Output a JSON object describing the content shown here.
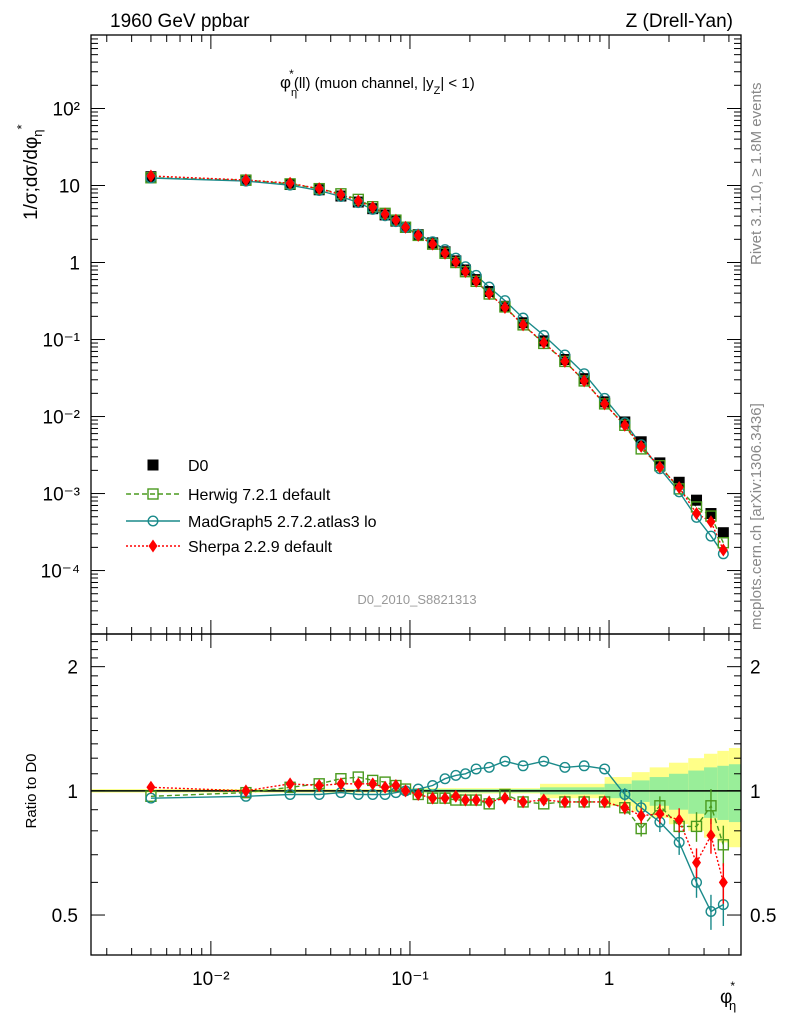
{
  "header": {
    "left": "1960 GeV ppbar",
    "right": "Z (Drell-Yan)"
  },
  "side_text": {
    "rivet": "Rivet 3.1.10, ≥ 1.8M events",
    "mcplots": "mcplots.cern.ch [arXiv:1306.3436]"
  },
  "analysis_id": "D0_2010_S8821313",
  "chart_data": [
    {
      "type": "line",
      "title": "φ*η(ll) (muon channel, |yZ| < 1)",
      "ylabel": "1/σ;dσ/dφ*η",
      "xlabel": "φ*η",
      "xscale": "log",
      "yscale": "log",
      "xlim": [
        0.0025,
        4.6
      ],
      "ylim": [
        1.5e-05,
        900
      ],
      "x_ticks": [
        "10^-2",
        "10^-1",
        "1"
      ],
      "y_ticks": [
        "10^-4",
        "10^-3",
        "10^-2",
        "10^-1",
        "1",
        "10",
        "10^2"
      ],
      "x": [
        0.005,
        0.015,
        0.025,
        0.035,
        0.045,
        0.055,
        0.065,
        0.075,
        0.085,
        0.095,
        0.11,
        0.13,
        0.15,
        0.17,
        0.19,
        0.215,
        0.25,
        0.3,
        0.37,
        0.47,
        0.6,
        0.75,
        0.95,
        1.2,
        1.45,
        1.8,
        2.25,
        2.75,
        3.25,
        3.75
      ],
      "legend_position": "lower-left",
      "series": [
        {
          "name": "D0",
          "style": "data",
          "color": "#000000",
          "values": [
            13.0,
            11.8,
            10.3,
            8.8,
            7.3,
            6.1,
            5.0,
            4.15,
            3.45,
            2.85,
            2.3,
            1.8,
            1.38,
            1.05,
            0.8,
            0.6,
            0.42,
            0.27,
            0.165,
            0.096,
            0.055,
            0.031,
            0.0155,
            0.0085,
            0.0047,
            0.0025,
            0.0014,
            0.00082,
            0.00055,
            0.00031
          ]
        },
        {
          "name": "Herwig 7.2.1 default",
          "style": "dashed",
          "marker": "square",
          "color": "#4a9a1e",
          "values": [
            12.6,
            11.7,
            10.5,
            9.1,
            7.8,
            6.6,
            5.3,
            4.35,
            3.55,
            2.87,
            2.25,
            1.73,
            1.32,
            1.0,
            0.76,
            0.57,
            0.39,
            0.265,
            0.155,
            0.089,
            0.052,
            0.029,
            0.0146,
            0.0077,
            0.0038,
            0.0023,
            0.00115,
            0.00067,
            0.00051,
            0.00023
          ]
        },
        {
          "name": "MadGraph5 2.7.2.atlas3 lo",
          "style": "solid",
          "marker": "circle",
          "color": "#1a8a8a",
          "values": [
            12.5,
            11.4,
            10.1,
            8.6,
            7.2,
            6.0,
            4.9,
            4.05,
            3.4,
            2.85,
            2.33,
            1.86,
            1.47,
            1.14,
            0.88,
            0.68,
            0.48,
            0.32,
            0.19,
            0.113,
            0.063,
            0.036,
            0.0172,
            0.0083,
            0.0043,
            0.0021,
            0.00105,
            0.00049,
            0.00028,
            0.000165
          ]
        },
        {
          "name": "Sherpa 2.2.9 default",
          "style": "dotted",
          "marker": "diamond",
          "color": "#ff0000",
          "values": [
            13.3,
            11.8,
            10.7,
            9.1,
            7.6,
            6.3,
            5.2,
            4.25,
            3.55,
            2.87,
            2.25,
            1.73,
            1.32,
            1.02,
            0.76,
            0.57,
            0.395,
            0.26,
            0.155,
            0.091,
            0.052,
            0.029,
            0.0146,
            0.0077,
            0.0041,
            0.0022,
            0.0012,
            0.00055,
            0.00043,
            0.000185
          ]
        }
      ]
    },
    {
      "type": "line",
      "ylabel": "Ratio to D0",
      "xlabel": "φ*η",
      "xscale": "log",
      "yscale": "log",
      "xlim": [
        0.0025,
        4.6
      ],
      "ylim": [
        0.4,
        2.4
      ],
      "y_ticks": [
        "0.5",
        "1",
        "2"
      ],
      "x": [
        0.005,
        0.015,
        0.025,
        0.035,
        0.045,
        0.055,
        0.065,
        0.075,
        0.085,
        0.095,
        0.11,
        0.13,
        0.15,
        0.17,
        0.19,
        0.215,
        0.25,
        0.3,
        0.37,
        0.47,
        0.6,
        0.75,
        0.95,
        1.2,
        1.45,
        1.8,
        2.25,
        2.75,
        3.25,
        3.75
      ],
      "uncertainty_bands": {
        "edges": [
          0.0025,
          0.1,
          0.45,
          0.95,
          1.3,
          1.6,
          2.0,
          2.5,
          3.0,
          3.5,
          4.0,
          4.6
        ],
        "stat_halfwidth": [
          0.005,
          0.01,
          0.02,
          0.04,
          0.06,
          0.08,
          0.1,
          0.12,
          0.14,
          0.15,
          0.16
        ],
        "total_halfwidth": [
          0.01,
          0.015,
          0.04,
          0.08,
          0.11,
          0.14,
          0.17,
          0.2,
          0.23,
          0.25,
          0.27
        ],
        "stat_color": "#99ee99",
        "total_color": "#ffff88"
      },
      "series": [
        {
          "name": "Herwig 7.2.1 default",
          "color": "#4a9a1e",
          "values": [
            0.97,
            0.99,
            1.02,
            1.04,
            1.07,
            1.08,
            1.06,
            1.05,
            1.03,
            1.01,
            0.98,
            0.96,
            0.96,
            0.95,
            0.95,
            0.95,
            0.93,
            0.98,
            0.94,
            0.93,
            0.94,
            0.94,
            0.94,
            0.91,
            0.81,
            0.92,
            0.82,
            0.82,
            0.92,
            0.74
          ]
        },
        {
          "name": "MadGraph5 2.7.2.atlas3 lo",
          "color": "#1a8a8a",
          "values": [
            0.96,
            0.97,
            0.98,
            0.98,
            0.99,
            0.98,
            0.98,
            0.98,
            0.99,
            1.0,
            1.01,
            1.03,
            1.07,
            1.09,
            1.1,
            1.13,
            1.14,
            1.18,
            1.15,
            1.18,
            1.14,
            1.15,
            1.13,
            0.98,
            0.91,
            0.84,
            0.75,
            0.6,
            0.51,
            0.53
          ]
        },
        {
          "name": "Sherpa 2.2.9 default",
          "color": "#ff0000",
          "values": [
            1.02,
            1.0,
            1.04,
            1.03,
            1.04,
            1.04,
            1.04,
            1.02,
            1.03,
            1.0,
            0.98,
            0.96,
            0.96,
            0.97,
            0.95,
            0.95,
            0.94,
            0.96,
            0.94,
            0.95,
            0.94,
            0.94,
            0.94,
            0.91,
            0.87,
            0.88,
            0.85,
            0.67,
            0.78,
            0.6
          ]
        }
      ]
    }
  ]
}
